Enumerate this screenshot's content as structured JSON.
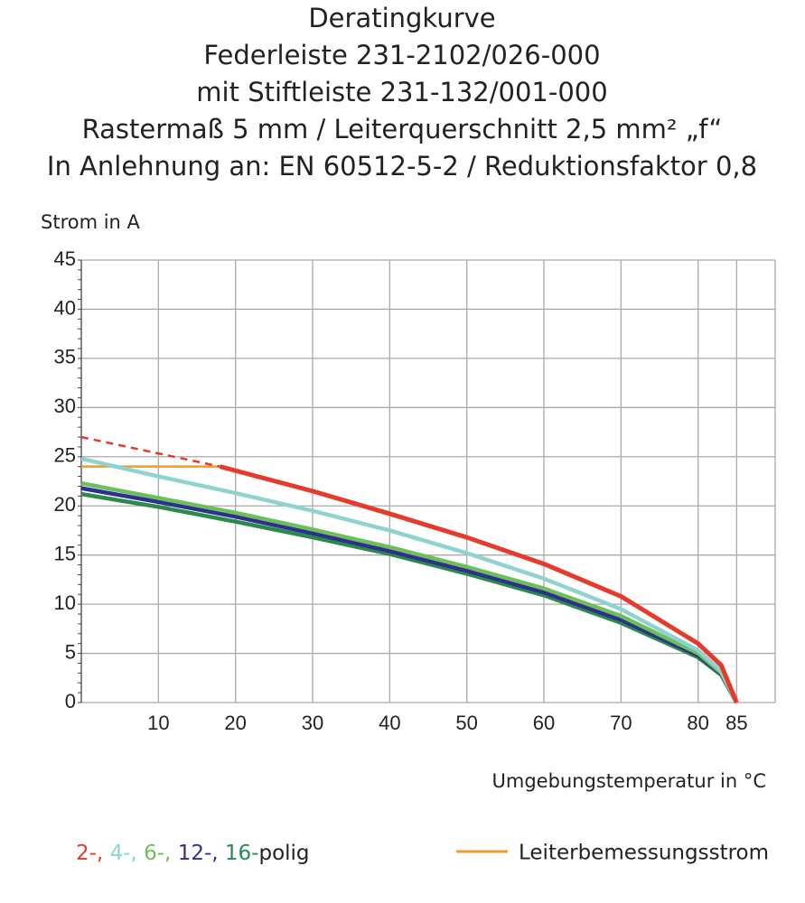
{
  "chart_data": {
    "type": "line",
    "title": [
      "Deratingkurve",
      "Federleiste 231-2102/026-000",
      "mit Stiftleiste 231-132/001-000",
      "Rastermaß 5 mm / Leiterquerschnitt 2,5 mm² „f“",
      "In Anlehnung an: EN 60512-5-2 / Reduktionsfaktor 0,8"
    ],
    "y_label": "Strom in A",
    "x_label": "Umgebungstemperatur in °C",
    "xlim": [
      0,
      90
    ],
    "ylim": [
      0,
      45
    ],
    "xticks": [
      10,
      20,
      30,
      40,
      50,
      60,
      70,
      80,
      85
    ],
    "yticks": [
      0,
      5,
      10,
      15,
      20,
      25,
      30,
      35,
      40,
      45
    ],
    "grid": true,
    "series": [
      {
        "name": "2-,",
        "color": "#e53a2c",
        "x": [
          18,
          30,
          40,
          50,
          60,
          70,
          80,
          83,
          85
        ],
        "values": [
          24,
          21.5,
          19.2,
          16.8,
          14.1,
          10.8,
          6,
          3.8,
          0
        ],
        "extrapolated": {
          "x": [
            0,
            18
          ],
          "values": [
            27,
            24
          ]
        }
      },
      {
        "name": "4-,",
        "color": "#8fd3d0",
        "x": [
          0,
          10,
          20,
          30,
          40,
          50,
          60,
          70,
          80,
          83,
          85
        ],
        "values": [
          24.8,
          23,
          21.3,
          19.5,
          17.5,
          15.2,
          12.6,
          9.5,
          5.3,
          3.2,
          0
        ]
      },
      {
        "name": "6-,",
        "color": "#6cbf5a",
        "x": [
          0,
          10,
          20,
          30,
          40,
          50,
          60,
          70,
          80,
          83,
          85
        ],
        "values": [
          22.3,
          20.8,
          19.3,
          17.6,
          15.8,
          13.8,
          11.6,
          8.8,
          5,
          3,
          0
        ]
      },
      {
        "name": "12-,",
        "color": "#2e2f8e",
        "x": [
          0,
          10,
          20,
          30,
          40,
          50,
          60,
          70,
          80,
          83,
          85
        ],
        "values": [
          21.8,
          20.4,
          18.9,
          17.2,
          15.4,
          13.4,
          11.2,
          8.4,
          4.8,
          2.9,
          0
        ]
      },
      {
        "name": "16-",
        "color": "#2a8a4a",
        "x": [
          0,
          10,
          20,
          30,
          40,
          50,
          60,
          70,
          80,
          83,
          85
        ],
        "values": [
          21.2,
          19.9,
          18.4,
          16.8,
          15.1,
          13.1,
          10.9,
          8.1,
          4.6,
          2.8,
          0
        ]
      }
    ],
    "legend_suffix": "polig",
    "reference_line": {
      "name": "Leiterbemessungsstrom",
      "color": "#f39a2a",
      "x": [
        0,
        18
      ],
      "values": [
        24,
        24
      ]
    }
  }
}
